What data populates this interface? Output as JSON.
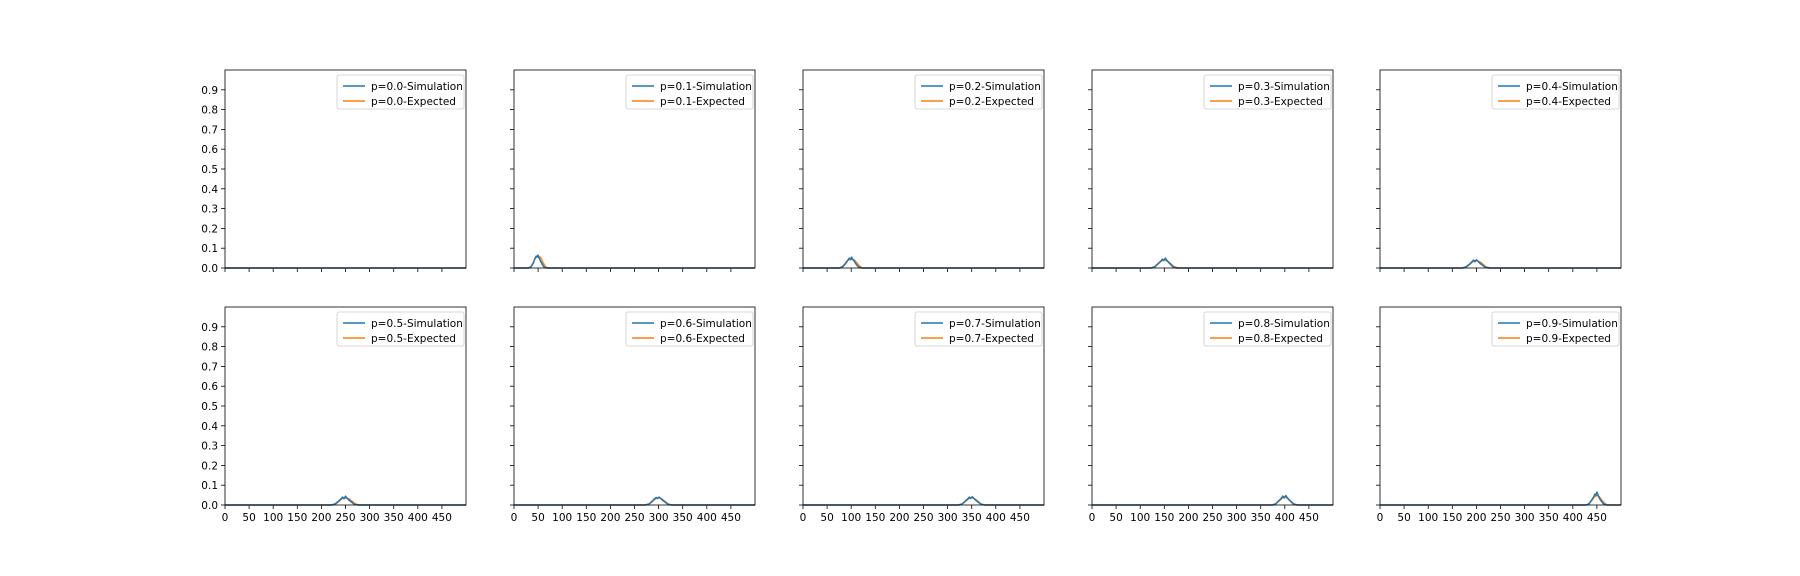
{
  "colors": {
    "simulation": "#1f77b4",
    "expected": "#ff7f0e",
    "axes": "#000000",
    "background": "#ffffff"
  },
  "layout_grid": {
    "rows": 2,
    "cols": 5,
    "sharex": true,
    "sharey": true
  },
  "chart_data": [
    {
      "type": "line",
      "p": "0.0",
      "xlim": [
        0,
        500
      ],
      "ylim": [
        0,
        1.0
      ],
      "x_ticks": [
        0,
        50,
        100,
        150,
        200,
        250,
        300,
        350,
        400,
        450
      ],
      "y_ticks": [
        0.0,
        0.1,
        0.2,
        0.3,
        0.4,
        0.5,
        0.6,
        0.7,
        0.8,
        0.9
      ],
      "show_x_tick_labels": false,
      "show_y_tick_labels": true,
      "legend": "upper right",
      "series": [
        {
          "name": "p=0.0-Simulation",
          "x": [
            0,
            500
          ],
          "y": [
            0,
            0
          ]
        },
        {
          "name": "p=0.0-Expected",
          "x": [
            0,
            500
          ],
          "y": [
            0,
            0
          ]
        }
      ]
    },
    {
      "type": "line",
      "p": "0.1",
      "xlim": [
        0,
        500
      ],
      "ylim": [
        0,
        1.0
      ],
      "x_ticks": [
        0,
        50,
        100,
        150,
        200,
        250,
        300,
        350,
        400,
        450
      ],
      "y_ticks": [
        0.0,
        0.1,
        0.2,
        0.3,
        0.4,
        0.5,
        0.6,
        0.7,
        0.8,
        0.9
      ],
      "show_x_tick_labels": false,
      "show_y_tick_labels": false,
      "legend": "upper right",
      "series": [
        {
          "name": "p=0.1-Simulation",
          "x": [
            0,
            30,
            35,
            40,
            43,
            46,
            48,
            50,
            52,
            55,
            58,
            62,
            67,
            500
          ],
          "y": [
            0,
            0,
            0.005,
            0.025,
            0.045,
            0.06,
            0.055,
            0.065,
            0.05,
            0.035,
            0.02,
            0.005,
            0,
            0
          ]
        },
        {
          "name": "p=0.1-Expected",
          "x": [
            0,
            30,
            35,
            40,
            43,
            46,
            50,
            54,
            57,
            60,
            65,
            70,
            500
          ],
          "y": [
            0,
            0,
            0.007,
            0.028,
            0.045,
            0.055,
            0.06,
            0.055,
            0.045,
            0.028,
            0.007,
            0,
            0
          ]
        }
      ]
    },
    {
      "type": "line",
      "p": "0.2",
      "xlim": [
        0,
        500
      ],
      "ylim": [
        0,
        1.0
      ],
      "x_ticks": [
        0,
        50,
        100,
        150,
        200,
        250,
        300,
        350,
        400,
        450
      ],
      "y_ticks": [
        0.0,
        0.1,
        0.2,
        0.3,
        0.4,
        0.5,
        0.6,
        0.7,
        0.8,
        0.9
      ],
      "show_x_tick_labels": false,
      "show_y_tick_labels": false,
      "legend": "upper right",
      "series": [
        {
          "name": "p=0.2-Simulation",
          "x": [
            0,
            75,
            82,
            88,
            92,
            96,
            99,
            101,
            103,
            106,
            110,
            115,
            122,
            500
          ],
          "y": [
            0,
            0,
            0.005,
            0.02,
            0.035,
            0.05,
            0.042,
            0.055,
            0.045,
            0.035,
            0.02,
            0.005,
            0,
            0
          ]
        },
        {
          "name": "p=0.2-Expected",
          "x": [
            0,
            76,
            82,
            88,
            93,
            100,
            107,
            112,
            118,
            124,
            500
          ],
          "y": [
            0,
            0,
            0.008,
            0.025,
            0.04,
            0.045,
            0.04,
            0.025,
            0.008,
            0,
            0
          ]
        }
      ]
    },
    {
      "type": "line",
      "p": "0.3",
      "xlim": [
        0,
        500
      ],
      "ylim": [
        0,
        1.0
      ],
      "x_ticks": [
        0,
        50,
        100,
        150,
        200,
        250,
        300,
        350,
        400,
        450
      ],
      "y_ticks": [
        0.0,
        0.1,
        0.2,
        0.3,
        0.4,
        0.5,
        0.6,
        0.7,
        0.8,
        0.9
      ],
      "show_x_tick_labels": false,
      "show_y_tick_labels": false,
      "legend": "upper right",
      "series": [
        {
          "name": "p=0.3-Simulation",
          "x": [
            0,
            122,
            130,
            137,
            142,
            146,
            149,
            152,
            155,
            158,
            163,
            168,
            176,
            500
          ],
          "y": [
            0,
            0,
            0.005,
            0.02,
            0.032,
            0.045,
            0.038,
            0.05,
            0.04,
            0.03,
            0.018,
            0.005,
            0,
            0
          ]
        },
        {
          "name": "p=0.3-Expected",
          "x": [
            0,
            123,
            130,
            137,
            143,
            150,
            157,
            163,
            170,
            178,
            500
          ],
          "y": [
            0,
            0,
            0.007,
            0.022,
            0.035,
            0.04,
            0.035,
            0.022,
            0.007,
            0,
            0
          ]
        }
      ]
    },
    {
      "type": "line",
      "p": "0.4",
      "xlim": [
        0,
        500
      ],
      "ylim": [
        0,
        1.0
      ],
      "x_ticks": [
        0,
        50,
        100,
        150,
        200,
        250,
        300,
        350,
        400,
        450
      ],
      "y_ticks": [
        0.0,
        0.1,
        0.2,
        0.3,
        0.4,
        0.5,
        0.6,
        0.7,
        0.8,
        0.9
      ],
      "show_x_tick_labels": false,
      "show_y_tick_labels": false,
      "legend": "upper right",
      "series": [
        {
          "name": "p=0.4-Simulation",
          "x": [
            0,
            170,
            178,
            185,
            190,
            194,
            197,
            200,
            203,
            207,
            212,
            218,
            226,
            500
          ],
          "y": [
            0,
            0,
            0.005,
            0.018,
            0.03,
            0.04,
            0.032,
            0.042,
            0.035,
            0.025,
            0.015,
            0.004,
            0,
            0
          ]
        },
        {
          "name": "p=0.4-Expected",
          "x": [
            0,
            172,
            180,
            187,
            193,
            200,
            207,
            213,
            220,
            228,
            500
          ],
          "y": [
            0,
            0,
            0.006,
            0.02,
            0.032,
            0.037,
            0.032,
            0.02,
            0.006,
            0,
            0
          ]
        }
      ]
    },
    {
      "type": "line",
      "p": "0.5",
      "xlim": [
        0,
        500
      ],
      "ylim": [
        0,
        1.0
      ],
      "x_ticks": [
        0,
        50,
        100,
        150,
        200,
        250,
        300,
        350,
        400,
        450
      ],
      "y_ticks": [
        0.0,
        0.1,
        0.2,
        0.3,
        0.4,
        0.5,
        0.6,
        0.7,
        0.8,
        0.9
      ],
      "show_x_tick_labels": true,
      "show_y_tick_labels": true,
      "legend": "upper right",
      "series": [
        {
          "name": "p=0.5-Simulation",
          "x": [
            0,
            220,
            228,
            235,
            240,
            244,
            247,
            250,
            253,
            257,
            262,
            268,
            276,
            500
          ],
          "y": [
            0,
            0,
            0.005,
            0.018,
            0.03,
            0.04,
            0.032,
            0.045,
            0.035,
            0.025,
            0.015,
            0.004,
            0,
            0
          ]
        },
        {
          "name": "p=0.5-Expected",
          "x": [
            0,
            222,
            230,
            237,
            243,
            250,
            257,
            263,
            270,
            278,
            500
          ],
          "y": [
            0,
            0,
            0.006,
            0.02,
            0.032,
            0.036,
            0.032,
            0.02,
            0.006,
            0,
            0
          ]
        }
      ]
    },
    {
      "type": "line",
      "p": "0.6",
      "xlim": [
        0,
        500
      ],
      "ylim": [
        0,
        1.0
      ],
      "x_ticks": [
        0,
        50,
        100,
        150,
        200,
        250,
        300,
        350,
        400,
        450
      ],
      "y_ticks": [
        0.0,
        0.1,
        0.2,
        0.3,
        0.4,
        0.5,
        0.6,
        0.7,
        0.8,
        0.9
      ],
      "show_x_tick_labels": true,
      "show_y_tick_labels": false,
      "legend": "upper right",
      "series": [
        {
          "name": "p=0.6-Simulation",
          "x": [
            0,
            272,
            280,
            286,
            291,
            295,
            298,
            301,
            304,
            308,
            313,
            319,
            327,
            500
          ],
          "y": [
            0,
            0,
            0.005,
            0.018,
            0.03,
            0.038,
            0.033,
            0.04,
            0.034,
            0.025,
            0.015,
            0.004,
            0,
            0
          ]
        },
        {
          "name": "p=0.6-Expected",
          "x": [
            0,
            273,
            281,
            288,
            294,
            300,
            306,
            312,
            319,
            327,
            500
          ],
          "y": [
            0,
            0,
            0.006,
            0.02,
            0.032,
            0.037,
            0.032,
            0.02,
            0.006,
            0,
            0
          ]
        }
      ]
    },
    {
      "type": "line",
      "p": "0.7",
      "xlim": [
        0,
        500
      ],
      "ylim": [
        0,
        1.0
      ],
      "x_ticks": [
        0,
        50,
        100,
        150,
        200,
        250,
        300,
        350,
        400,
        450
      ],
      "y_ticks": [
        0.0,
        0.1,
        0.2,
        0.3,
        0.4,
        0.5,
        0.6,
        0.7,
        0.8,
        0.9
      ],
      "show_x_tick_labels": true,
      "show_y_tick_labels": false,
      "legend": "upper right",
      "series": [
        {
          "name": "p=0.7-Simulation",
          "x": [
            0,
            322,
            330,
            336,
            341,
            345,
            348,
            351,
            354,
            358,
            363,
            369,
            377,
            500
          ],
          "y": [
            0,
            0,
            0.005,
            0.018,
            0.03,
            0.04,
            0.033,
            0.042,
            0.035,
            0.025,
            0.015,
            0.004,
            0,
            0
          ]
        },
        {
          "name": "p=0.7-Expected",
          "x": [
            0,
            323,
            331,
            338,
            344,
            350,
            356,
            362,
            369,
            377,
            500
          ],
          "y": [
            0,
            0,
            0.006,
            0.02,
            0.032,
            0.037,
            0.032,
            0.02,
            0.006,
            0,
            0
          ]
        }
      ]
    },
    {
      "type": "line",
      "p": "0.8",
      "xlim": [
        0,
        500
      ],
      "ylim": [
        0,
        1.0
      ],
      "x_ticks": [
        0,
        50,
        100,
        150,
        200,
        250,
        300,
        350,
        400,
        450
      ],
      "y_ticks": [
        0.0,
        0.1,
        0.2,
        0.3,
        0.4,
        0.5,
        0.6,
        0.7,
        0.8,
        0.9
      ],
      "show_x_tick_labels": true,
      "show_y_tick_labels": false,
      "legend": "upper right",
      "series": [
        {
          "name": "p=0.8-Simulation",
          "x": [
            0,
            374,
            381,
            387,
            392,
            396,
            399,
            402,
            405,
            408,
            413,
            418,
            426,
            500
          ],
          "y": [
            0,
            0,
            0.005,
            0.02,
            0.032,
            0.045,
            0.036,
            0.048,
            0.038,
            0.028,
            0.016,
            0.004,
            0,
            0
          ]
        },
        {
          "name": "p=0.8-Expected",
          "x": [
            0,
            374,
            382,
            389,
            395,
            400,
            405,
            411,
            418,
            426,
            500
          ],
          "y": [
            0,
            0,
            0.007,
            0.022,
            0.035,
            0.04,
            0.035,
            0.022,
            0.007,
            0,
            0
          ]
        }
      ]
    },
    {
      "type": "line",
      "p": "0.9",
      "xlim": [
        0,
        500
      ],
      "ylim": [
        0,
        1.0
      ],
      "x_ticks": [
        0,
        50,
        100,
        150,
        200,
        250,
        300,
        350,
        400,
        450
      ],
      "y_ticks": [
        0.0,
        0.1,
        0.2,
        0.3,
        0.4,
        0.5,
        0.6,
        0.7,
        0.8,
        0.9
      ],
      "show_x_tick_labels": true,
      "show_y_tick_labels": false,
      "legend": "upper right",
      "series": [
        {
          "name": "p=0.9-Simulation",
          "x": [
            0,
            428,
            434,
            439,
            443,
            446,
            448,
            450,
            452,
            455,
            459,
            464,
            470,
            500
          ],
          "y": [
            0,
            0,
            0.006,
            0.025,
            0.04,
            0.055,
            0.05,
            0.065,
            0.052,
            0.035,
            0.02,
            0.005,
            0,
            0
          ]
        },
        {
          "name": "p=0.9-Expected",
          "x": [
            0,
            428,
            434,
            440,
            445,
            450,
            455,
            460,
            466,
            472,
            500
          ],
          "y": [
            0,
            0,
            0.008,
            0.026,
            0.042,
            0.048,
            0.042,
            0.026,
            0.008,
            0,
            0
          ]
        }
      ]
    }
  ]
}
